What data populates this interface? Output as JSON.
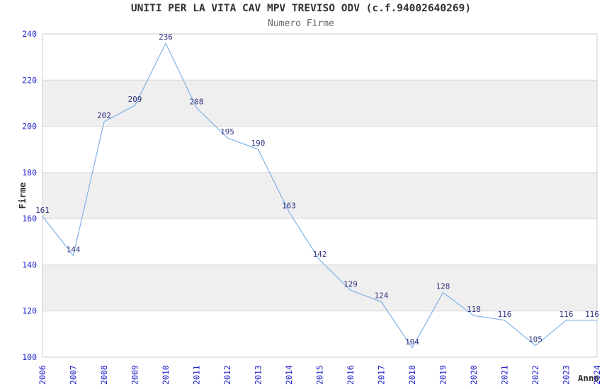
{
  "header": {
    "title": "UNITI PER LA VITA CAV MPV TREVISO ODV (c.f.94002640269)",
    "subtitle": "Numero Firme"
  },
  "chart_data": {
    "type": "line",
    "title": "UNITI PER LA VITA CAV MPV TREVISO ODV (c.f.94002640269)",
    "subtitle": "Numero Firme",
    "xlabel": "Anno",
    "ylabel": "Firme",
    "categories": [
      "2006",
      "2007",
      "2008",
      "2009",
      "2010",
      "2011",
      "2012",
      "2013",
      "2014",
      "2015",
      "2016",
      "2017",
      "2018",
      "2019",
      "2020",
      "2021",
      "2022",
      "2023",
      "2024"
    ],
    "series": [
      {
        "name": "Numero Firme",
        "values": [
          161,
          144,
          202,
          209,
          236,
          208,
          195,
          190,
          163,
          142,
          129,
          124,
          104,
          128,
          118,
          116,
          105,
          116,
          116
        ]
      }
    ],
    "ylim": [
      100,
      240
    ],
    "y_ticks": [
      100,
      120,
      140,
      160,
      180,
      200,
      220,
      240
    ],
    "y_tick_step": 20,
    "grid": "alternating-horizontal-bands",
    "legend": "none",
    "point_labels": true,
    "colors": {
      "line": "#7fb2e8",
      "tick_labels": "#2222cc",
      "point_labels": "#333380",
      "band": "#efefef",
      "gridline": "#d8d8d8",
      "frame": "#cccccc",
      "title": "#333333",
      "subtitle": "#666666",
      "axis_title": "#333333",
      "background": "#ffffff"
    }
  }
}
